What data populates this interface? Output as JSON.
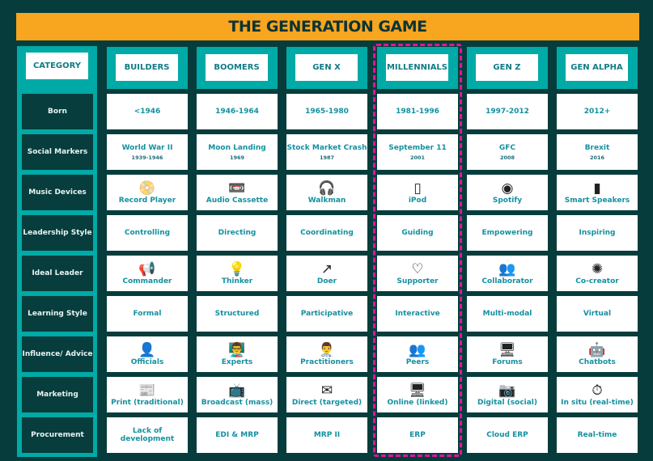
{
  "title": "THE GENERATION GAME",
  "category_header": "CATEGORY",
  "colors": {
    "background": "#063d3c",
    "title_bar": "#f8a51f",
    "teal": "#00aaa6",
    "highlight": "#e4139b"
  },
  "highlighted_column": "MILLENNIALS",
  "categories": [
    "Born",
    "Social Markers",
    "Music Devices",
    "Leadership Style",
    "Ideal Leader",
    "Learning Style",
    "Influence/ Advice",
    "Marketing",
    "Procurement"
  ],
  "generations": [
    {
      "name": "BUILDERS",
      "cells": [
        {
          "text": "<1946"
        },
        {
          "text": "World War II",
          "sub": "1939-1946"
        },
        {
          "text": "Record Player",
          "icon": "record-player-icon",
          "glyph": "📀"
        },
        {
          "text": "Controlling"
        },
        {
          "text": "Commander",
          "icon": "megaphone-icon",
          "glyph": "📢"
        },
        {
          "text": "Formal"
        },
        {
          "text": "Officials",
          "icon": "official-person-icon",
          "glyph": "👤"
        },
        {
          "text": "Print (traditional)",
          "icon": "newspaper-icon",
          "glyph": "📰"
        },
        {
          "text": "Lack of development"
        }
      ]
    },
    {
      "name": "BOOMERS",
      "cells": [
        {
          "text": "1946-1964"
        },
        {
          "text": "Moon Landing",
          "sub": "1969"
        },
        {
          "text": "Audio Cassette",
          "icon": "cassette-icon",
          "glyph": "📼"
        },
        {
          "text": "Directing"
        },
        {
          "text": "Thinker",
          "icon": "lightbulb-icon",
          "glyph": "💡"
        },
        {
          "text": "Structured"
        },
        {
          "text": "Experts",
          "icon": "expert-presenter-icon",
          "glyph": "👨‍🏫"
        },
        {
          "text": "Broadcast (mass)",
          "icon": "tv-icon",
          "glyph": "📺"
        },
        {
          "text": "EDI & MRP"
        }
      ]
    },
    {
      "name": "GEN X",
      "cells": [
        {
          "text": "1965-1980"
        },
        {
          "text": "Stock Market Crash",
          "sub": "1987"
        },
        {
          "text": "Walkman",
          "icon": "walkman-icon",
          "glyph": "🎧"
        },
        {
          "text": "Coordinating"
        },
        {
          "text": "Doer",
          "icon": "doer-arrow-icon",
          "glyph": "↗"
        },
        {
          "text": "Participative"
        },
        {
          "text": "Practitioners",
          "icon": "practitioner-icon",
          "glyph": "👨‍⚕️"
        },
        {
          "text": "Direct (targeted)",
          "icon": "envelope-icon",
          "glyph": "✉"
        },
        {
          "text": "MRP II"
        }
      ]
    },
    {
      "name": "MILLENNIALS",
      "cells": [
        {
          "text": "1981-1996"
        },
        {
          "text": "September 11",
          "sub": "2001"
        },
        {
          "text": "iPod",
          "icon": "ipod-icon",
          "glyph": "▯"
        },
        {
          "text": "Guiding"
        },
        {
          "text": "Supporter",
          "icon": "hand-heart-icon",
          "glyph": "♡"
        },
        {
          "text": "Interactive"
        },
        {
          "text": "Peers",
          "icon": "peers-chat-icon",
          "glyph": "👥"
        },
        {
          "text": "Online (linked)",
          "icon": "monitor-link-icon",
          "glyph": "🖥"
        },
        {
          "text": "ERP"
        }
      ]
    },
    {
      "name": "GEN Z",
      "cells": [
        {
          "text": "1997-2012"
        },
        {
          "text": "GFC",
          "sub": "2008"
        },
        {
          "text": "Spotify",
          "icon": "spotify-icon",
          "glyph": "◉"
        },
        {
          "text": "Empowering"
        },
        {
          "text": "Collaborator",
          "icon": "collaboration-icon",
          "glyph": "👥"
        },
        {
          "text": "Multi-modal"
        },
        {
          "text": "Forums",
          "icon": "forum-monitor-icon",
          "glyph": "🖥"
        },
        {
          "text": "Digital (social)",
          "icon": "instagram-icon",
          "glyph": "📷"
        },
        {
          "text": "Cloud ERP"
        }
      ]
    },
    {
      "name": "GEN ALPHA",
      "cells": [
        {
          "text": "2012+"
        },
        {
          "text": "Brexit",
          "sub": "2016"
        },
        {
          "text": "Smart Speakers",
          "icon": "smart-speaker-icon",
          "glyph": "▮"
        },
        {
          "text": "Inspiring"
        },
        {
          "text": "Co-creator",
          "icon": "co-creator-icon",
          "glyph": "✺"
        },
        {
          "text": "Virtual"
        },
        {
          "text": "Chatbots",
          "icon": "android-robot-icon",
          "glyph": "🤖"
        },
        {
          "text": "In situ (real-time)",
          "icon": "stopwatch-icon",
          "glyph": "⏱"
        },
        {
          "text": "Real-time"
        }
      ]
    }
  ]
}
